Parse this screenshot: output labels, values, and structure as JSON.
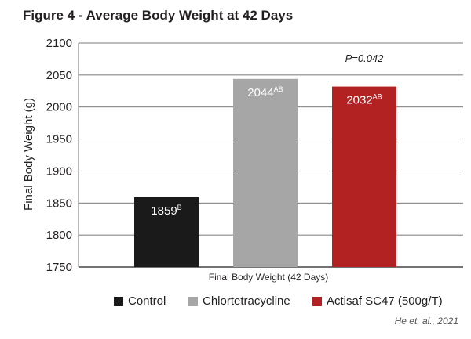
{
  "figure_title": "Figure 4 - Average Body Weight at 42 Days",
  "citation": "He et. al., 2021",
  "chart_data": {
    "type": "bar",
    "title": "Figure 4 - Average Body Weight at 42 Days",
    "xlabel": "Final Body Weight (42 Days)",
    "ylabel": "Final Body Weight (g)",
    "ylim": [
      1750,
      2100
    ],
    "yticks": [
      1750,
      1800,
      1850,
      1900,
      1950,
      2000,
      2050,
      2100
    ],
    "grid": "horizontal",
    "legend_position": "bottom",
    "annotation": "P=0.042",
    "categories": [
      "Control",
      "Chlortetracycline",
      "Actisaf SC47 (500g/T)"
    ],
    "values": [
      1859,
      2044,
      2032
    ],
    "value_labels": [
      "1859",
      "2044",
      "2032"
    ],
    "superscripts": [
      "B",
      "AB",
      "AB"
    ],
    "colors": [
      "#1a1a1a",
      "#a6a6a6",
      "#b22222"
    ]
  },
  "legend": [
    {
      "label": "Control",
      "color": "#1a1a1a"
    },
    {
      "label": "Chlortetracycline",
      "color": "#a6a6a6"
    },
    {
      "label": "Actisaf SC47 (500g/T)",
      "color": "#b22222"
    }
  ]
}
